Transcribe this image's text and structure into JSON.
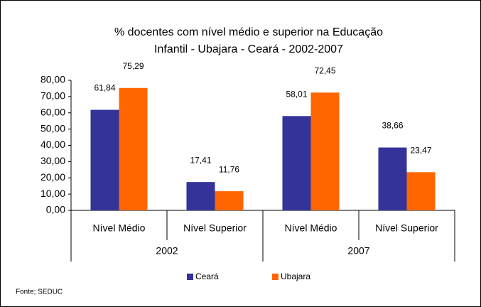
{
  "chart_data": {
    "type": "bar",
    "title": [
      "% docentes com nível médio e superior na  Educação",
      "Infantil - Ubajara - Ceará - 2002-2007"
    ],
    "categories": [
      "Nível Médio",
      "Nível Superior",
      "Nível Médio",
      "Nível Superior"
    ],
    "groups": [
      "2002",
      "2007"
    ],
    "series": [
      {
        "name": "Ceará",
        "color": "#333399",
        "values": [
          61.84,
          17.41,
          58.01,
          38.66
        ],
        "value_labels": [
          "61,84",
          "17,41",
          "58,01",
          "38,66"
        ]
      },
      {
        "name": "Ubajara",
        "color": "#ff6600",
        "values": [
          75.29,
          11.76,
          72.45,
          23.47
        ],
        "value_labels": [
          "75,29",
          "11,76",
          "72,45",
          "23,47"
        ]
      }
    ],
    "ylim": [
      0,
      80
    ],
    "yticks": [
      {
        "value": 0,
        "label": "0,00"
      },
      {
        "value": 10,
        "label": "10,00"
      },
      {
        "value": 20,
        "label": "20,00"
      },
      {
        "value": 30,
        "label": "30,00"
      },
      {
        "value": 40,
        "label": "40,00"
      },
      {
        "value": 50,
        "label": "50,00"
      },
      {
        "value": 60,
        "label": "60,00"
      },
      {
        "value": 70,
        "label": "70,00"
      },
      {
        "value": 80,
        "label": "80,00"
      }
    ],
    "legend": "bottom",
    "source": "Fonte; SEDUC"
  }
}
